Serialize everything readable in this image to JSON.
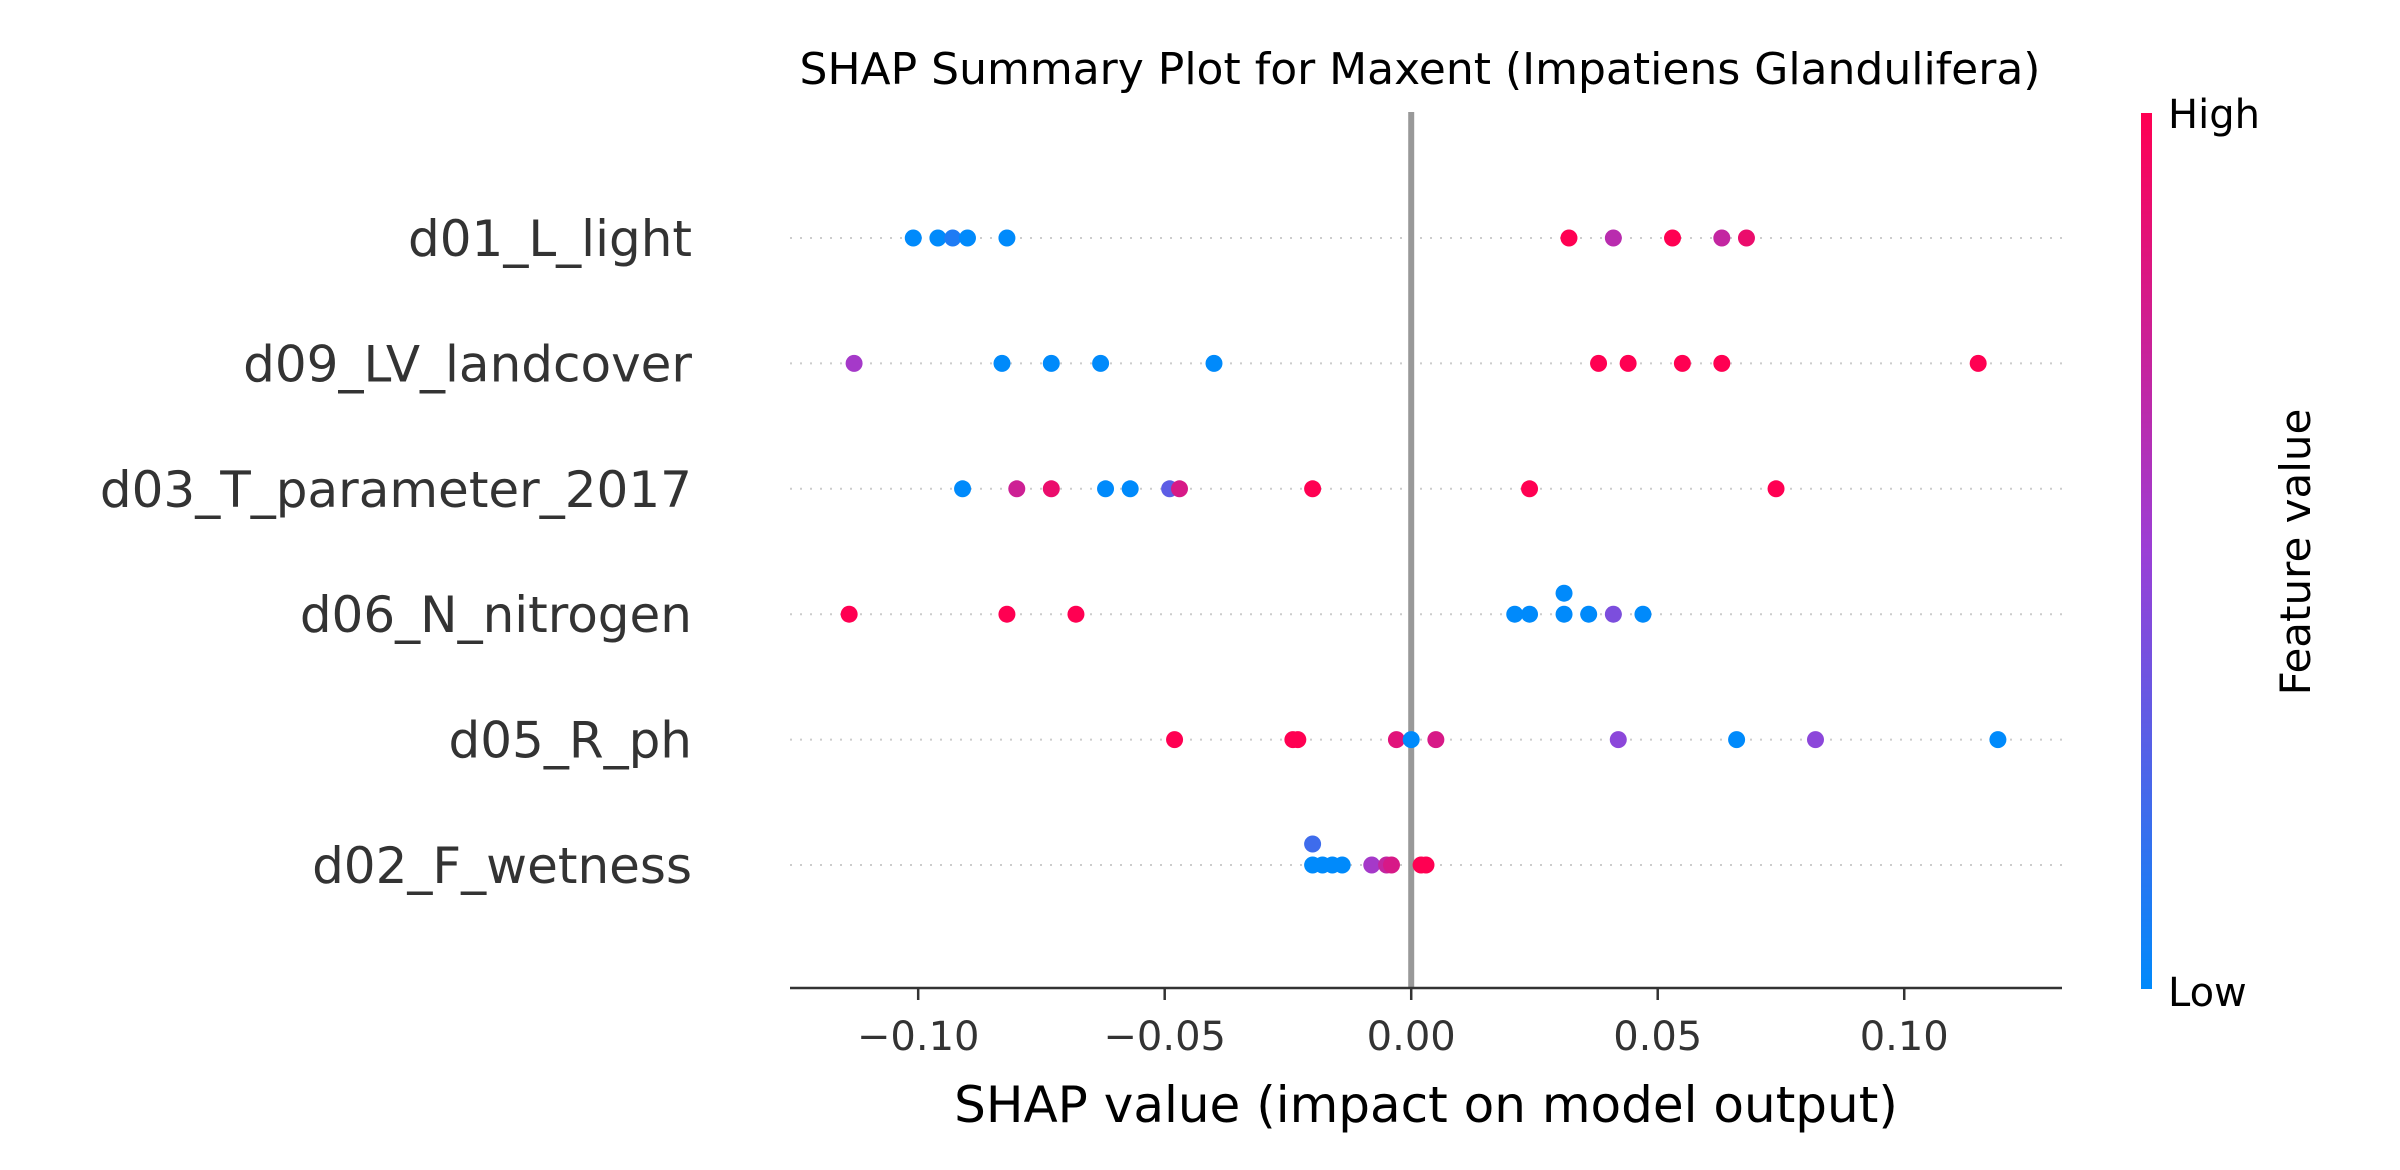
{
  "chart_data": {
    "type": "scatter",
    "title": "SHAP Summary Plot for Maxent (Impatiens Glandulifera)",
    "xlabel": "SHAP value (impact on model output)",
    "xlim": [
      -0.126,
      0.132
    ],
    "xticks": [
      -0.1,
      -0.05,
      0.0,
      0.05,
      0.1
    ],
    "xtick_labels": [
      "−0.10",
      "−0.05",
      "0.00",
      "0.05",
      "0.10"
    ],
    "grid": false,
    "colors": {
      "low": "#008afb",
      "high": "#ff0052",
      "zero_line": "#999999"
    },
    "colorbar": {
      "title": "Feature value",
      "high_label": "High",
      "low_label": "Low"
    },
    "features": [
      {
        "name": "d01_L_light",
        "points": [
          {
            "x": -0.101,
            "v": 0.0
          },
          {
            "x": -0.096,
            "v": 0.0
          },
          {
            "x": -0.093,
            "v": 0.1
          },
          {
            "x": -0.09,
            "v": 0.0
          },
          {
            "x": -0.082,
            "v": 0.0
          },
          {
            "x": 0.032,
            "v": 1.0
          },
          {
            "x": 0.041,
            "v": 0.65
          },
          {
            "x": 0.053,
            "v": 1.0
          },
          {
            "x": 0.063,
            "v": 0.7
          },
          {
            "x": 0.068,
            "v": 0.9
          }
        ]
      },
      {
        "name": "d09_LV_landcover",
        "points": [
          {
            "x": -0.113,
            "v": 0.55
          },
          {
            "x": -0.083,
            "v": 0.0
          },
          {
            "x": -0.073,
            "v": 0.0
          },
          {
            "x": -0.063,
            "v": 0.0
          },
          {
            "x": -0.04,
            "v": 0.0
          },
          {
            "x": 0.038,
            "v": 1.0
          },
          {
            "x": 0.044,
            "v": 1.0
          },
          {
            "x": 0.055,
            "v": 1.0
          },
          {
            "x": 0.063,
            "v": 1.0
          },
          {
            "x": 0.115,
            "v": 1.0
          }
        ]
      },
      {
        "name": "d03_T_parameter_2017",
        "points": [
          {
            "x": -0.091,
            "v": 0.0
          },
          {
            "x": -0.08,
            "v": 0.75
          },
          {
            "x": -0.073,
            "v": 0.9
          },
          {
            "x": -0.062,
            "v": 0.0
          },
          {
            "x": -0.057,
            "v": 0.0
          },
          {
            "x": -0.049,
            "v": 0.3
          },
          {
            "x": -0.047,
            "v": 0.8
          },
          {
            "x": -0.02,
            "v": 1.0
          },
          {
            "x": 0.024,
            "v": 1.0
          },
          {
            "x": 0.074,
            "v": 1.0
          }
        ]
      },
      {
        "name": "d06_N_nitrogen",
        "points": [
          {
            "x": -0.114,
            "v": 1.0
          },
          {
            "x": -0.082,
            "v": 1.0
          },
          {
            "x": -0.068,
            "v": 1.0
          },
          {
            "x": 0.021,
            "v": 0.0
          },
          {
            "x": 0.024,
            "v": 0.0
          },
          {
            "x": 0.031,
            "v": 0.0,
            "dy": -1
          },
          {
            "x": 0.031,
            "v": 0.0
          },
          {
            "x": 0.036,
            "v": 0.0
          },
          {
            "x": 0.041,
            "v": 0.4
          },
          {
            "x": 0.047,
            "v": 0.0
          }
        ]
      },
      {
        "name": "d05_R_ph",
        "points": [
          {
            "x": -0.048,
            "v": 1.0
          },
          {
            "x": -0.024,
            "v": 1.0
          },
          {
            "x": -0.023,
            "v": 1.0
          },
          {
            "x": -0.003,
            "v": 0.85
          },
          {
            "x": 0.0,
            "v": 0.0
          },
          {
            "x": 0.005,
            "v": 0.8
          },
          {
            "x": 0.042,
            "v": 0.45
          },
          {
            "x": 0.066,
            "v": 0.0
          },
          {
            "x": 0.082,
            "v": 0.45
          },
          {
            "x": 0.119,
            "v": 0.0
          }
        ]
      },
      {
        "name": "d02_F_wetness",
        "points": [
          {
            "x": -0.02,
            "v": 0.2,
            "dy": -1
          },
          {
            "x": -0.02,
            "v": 0.0
          },
          {
            "x": -0.018,
            "v": 0.0
          },
          {
            "x": -0.016,
            "v": 0.0
          },
          {
            "x": -0.014,
            "v": 0.0
          },
          {
            "x": -0.008,
            "v": 0.55
          },
          {
            "x": -0.005,
            "v": 0.7
          },
          {
            "x": -0.004,
            "v": 0.8
          },
          {
            "x": 0.002,
            "v": 1.0
          },
          {
            "x": 0.003,
            "v": 1.0
          }
        ]
      }
    ]
  }
}
